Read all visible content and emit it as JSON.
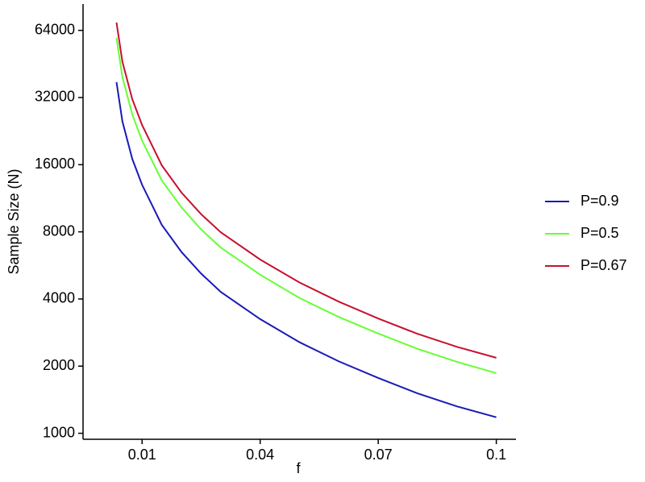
{
  "chart_data": {
    "type": "line",
    "x_label": "f",
    "y_label": "Sample Size (N)",
    "x": [
      0.0035,
      0.005,
      0.0075,
      0.01,
      0.015,
      0.02,
      0.025,
      0.03,
      0.04,
      0.05,
      0.06,
      0.07,
      0.08,
      0.09,
      0.1
    ],
    "series": [
      {
        "name": "P=0.9",
        "color": "#1a1ab8",
        "values": [
          37500,
          25000,
          17000,
          13000,
          8600,
          6500,
          5200,
          4300,
          3250,
          2560,
          2100,
          1770,
          1510,
          1320,
          1180
        ]
      },
      {
        "name": "P=0.5",
        "color": "#66ff33",
        "values": [
          59200,
          39500,
          26900,
          20500,
          13600,
          10300,
          8200,
          6800,
          5140,
          4040,
          3320,
          2800,
          2390,
          2090,
          1860
        ]
      },
      {
        "name": "P=0.67",
        "color": "#c8102e",
        "values": [
          69400,
          46300,
          31500,
          24100,
          15900,
          12000,
          9600,
          7960,
          6010,
          4740,
          3890,
          3270,
          2790,
          2440,
          2180
        ]
      }
    ],
    "xlim": [
      -0.005,
      0.105
    ],
    "xticks": [
      0.01,
      0.04,
      0.07,
      0.1
    ],
    "ylim": [
      940,
      84000
    ],
    "yticks": [
      1000,
      2000,
      4000,
      8000,
      16000,
      32000,
      64000
    ],
    "y_scale": "log",
    "grid": false,
    "legend_position": "right"
  }
}
